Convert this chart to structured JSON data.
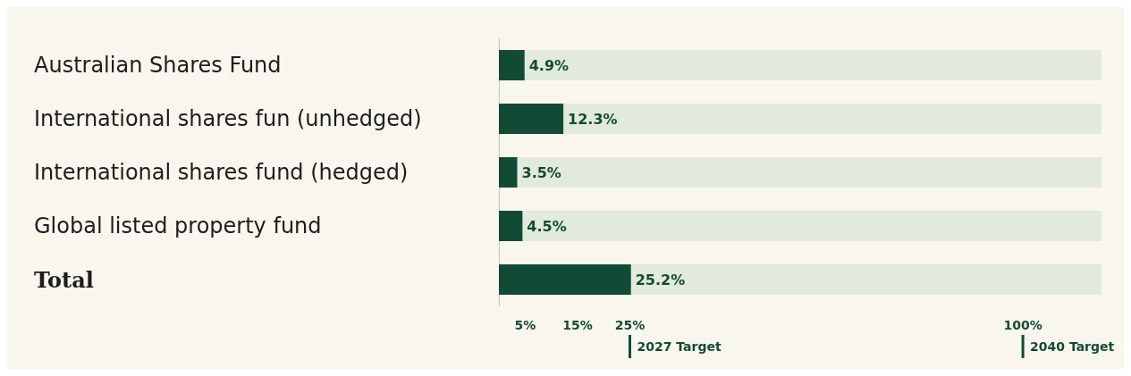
{
  "chart_data": {
    "type": "bar",
    "orientation": "horizontal",
    "categories": [
      "Australian Shares Fund",
      "International shares fun (unhedged)",
      "International shares fund (hedged)",
      "Global listed property fund",
      "Total"
    ],
    "values": [
      4.9,
      12.3,
      3.5,
      4.5,
      25.2
    ],
    "color": "#124b35",
    "value_labels": [
      "4.9%",
      "12.3%",
      "3.5%",
      "4.5%",
      "25.2%"
    ],
    "xlim": [
      0,
      115
    ],
    "xticks": [
      {
        "value": 5,
        "label": "5%"
      },
      {
        "value": 15,
        "label": "15%"
      },
      {
        "value": 25,
        "label": "25%"
      },
      {
        "value": 100,
        "label": "100%"
      }
    ],
    "ref_lines": [
      {
        "axis": "x",
        "value": 25,
        "label": "2027 Target",
        "color": "#124b35"
      },
      {
        "axis": "x",
        "value": 100,
        "label": "2040 Target",
        "color": "#124b35"
      }
    ]
  }
}
